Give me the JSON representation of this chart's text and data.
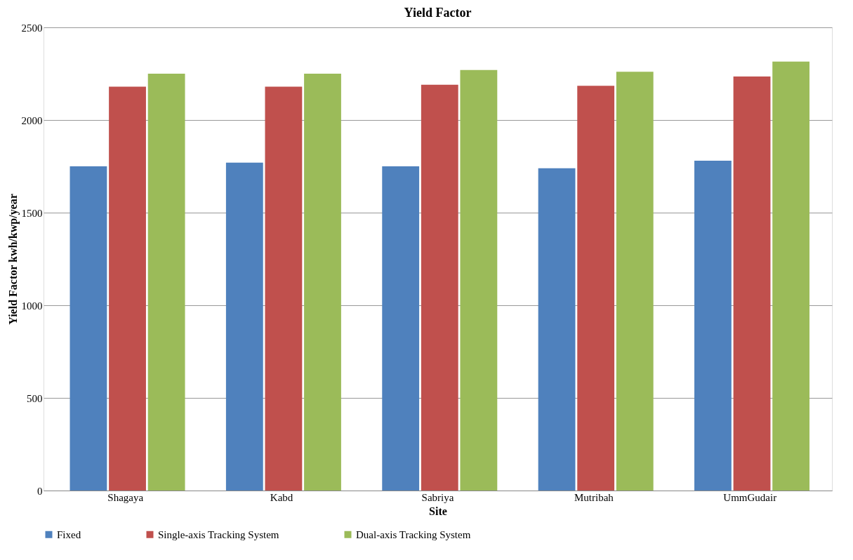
{
  "chart_data": {
    "type": "bar",
    "title": "Yield Factor",
    "xlabel": "Site",
    "ylabel": "Yield Factor kwh/kwp/year",
    "categories": [
      "Shagaya",
      "Kabd",
      "Sabriya",
      "Mutribah",
      "UmmGudair"
    ],
    "series": [
      {
        "name": "Fixed",
        "color": "#4f81bd",
        "values": [
          1750,
          1770,
          1750,
          1740,
          1780
        ]
      },
      {
        "name": "Single-axis Tracking System",
        "color": "#c0504d",
        "values": [
          2180,
          2180,
          2190,
          2185,
          2235
        ]
      },
      {
        "name": "Dual-axis Tracking System",
        "color": "#9bbb59",
        "values": [
          2250,
          2250,
          2270,
          2260,
          2315
        ]
      }
    ],
    "ylim": [
      0,
      2500
    ],
    "yticks": [
      0,
      500,
      1000,
      1500,
      2000,
      2500
    ],
    "grid": "y",
    "legend": "bottom"
  }
}
